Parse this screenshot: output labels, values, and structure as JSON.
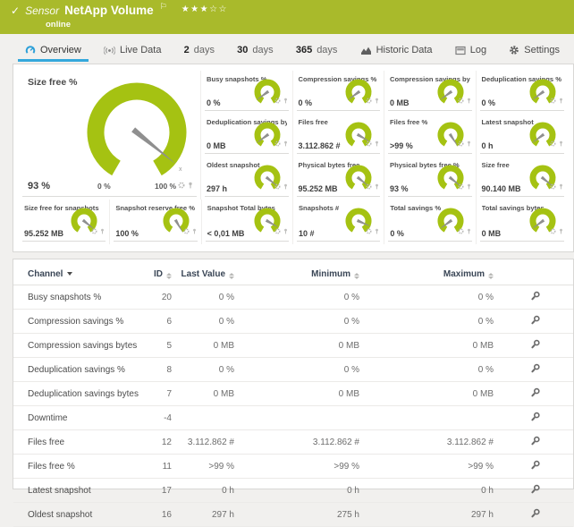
{
  "header": {
    "type_label": "Sensor",
    "title": "NetApp Volume",
    "status": "online",
    "rating": {
      "filled": 3,
      "empty": 2
    }
  },
  "tabs": [
    {
      "label": "Overview",
      "icon": "gauge-icon",
      "active": true
    },
    {
      "label": "Live Data",
      "icon": "broadcast-icon",
      "active": false
    },
    {
      "num": "2",
      "label": "days",
      "active": false
    },
    {
      "num": "30",
      "label": "days",
      "active": false
    },
    {
      "num": "365",
      "label": "days",
      "active": false
    },
    {
      "label": "Historic Data",
      "icon": "area-chart-icon",
      "active": false
    },
    {
      "label": "Log",
      "icon": "log-icon",
      "active": false
    },
    {
      "label": "Settings",
      "icon": "gear-icon",
      "active": false
    }
  ],
  "overview": {
    "main_gauge": {
      "title": "Size free %",
      "value": "93 %",
      "min_label": "0 %",
      "max_label": "100 %",
      "percent": 93,
      "limit_marker": "x"
    },
    "grid_tiles": [
      {
        "title": "Busy snapshots %",
        "value": "0 %",
        "percent": 8
      },
      {
        "title": "Compression savings %",
        "value": "0 %",
        "percent": 8
      },
      {
        "title": "Compression savings bytes",
        "value": "0 MB",
        "percent": 8
      },
      {
        "title": "Deduplication savings %",
        "value": "0 %",
        "percent": 8
      },
      {
        "title": "Deduplication savings bytes",
        "value": "0 MB",
        "percent": 8
      },
      {
        "title": "Files free",
        "value": "3.112.862 #",
        "percent": 90
      },
      {
        "title": "Files free %",
        "value": ">99 %",
        "percent": 99
      },
      {
        "title": "Latest snapshot",
        "value": "0 h",
        "percent": 8
      },
      {
        "title": "Oldest snapshot",
        "value": "297 h",
        "percent": 93
      },
      {
        "title": "Physical bytes free",
        "value": "95.252 MB",
        "percent": 93
      },
      {
        "title": "Physical bytes free %",
        "value": "93 %",
        "percent": 93
      },
      {
        "title": "Size free",
        "value": "90.140 MB",
        "percent": 93
      }
    ],
    "strip_tiles": [
      {
        "title": "Size free for snapshots",
        "value": "95.252 MB",
        "percent": 93
      },
      {
        "title": "Snapshot reserve free %",
        "value": "100 %",
        "percent": 100
      },
      {
        "title": "Snapshot Total bytes",
        "value": "< 0,01 MB",
        "percent": 90
      },
      {
        "title": "Snapshots #",
        "value": "10 #",
        "percent": 88
      },
      {
        "title": "Total savings %",
        "value": "0 %",
        "percent": 8
      },
      {
        "title": "Total savings bytes",
        "value": "0 MB",
        "percent": 8
      }
    ]
  },
  "table": {
    "columns": {
      "channel": "Channel",
      "id": "ID",
      "last_value": "Last Value",
      "minimum": "Minimum",
      "maximum": "Maximum"
    },
    "rows": [
      {
        "channel": "Busy snapshots %",
        "id": "20",
        "last": "0 %",
        "min": "0 %",
        "max": "0 %"
      },
      {
        "channel": "Compression savings %",
        "id": "6",
        "last": "0 %",
        "min": "0 %",
        "max": "0 %"
      },
      {
        "channel": "Compression savings bytes",
        "id": "5",
        "last": "0 MB",
        "min": "0 MB",
        "max": "0 MB"
      },
      {
        "channel": "Deduplication savings %",
        "id": "8",
        "last": "0 %",
        "min": "0 %",
        "max": "0 %"
      },
      {
        "channel": "Deduplication savings bytes",
        "id": "7",
        "last": "0 MB",
        "min": "0 MB",
        "max": "0 MB"
      },
      {
        "channel": "Downtime",
        "id": "-4",
        "last": "",
        "min": "",
        "max": ""
      },
      {
        "channel": "Files free",
        "id": "12",
        "last": "3.112.862 #",
        "min": "3.112.862 #",
        "max": "3.112.862 #"
      },
      {
        "channel": "Files free %",
        "id": "11",
        "last": ">99 %",
        "min": ">99 %",
        "max": ">99 %"
      },
      {
        "channel": "Latest snapshot",
        "id": "17",
        "last": "0 h",
        "min": "0 h",
        "max": "0 h"
      },
      {
        "channel": "Oldest snapshot",
        "id": "16",
        "last": "297 h",
        "min": "275 h",
        "max": "297 h"
      }
    ]
  },
  "colors": {
    "brand_green": "#a9ba2b",
    "gauge_green": "#a5c212",
    "accent_blue": "#35a8dc"
  }
}
